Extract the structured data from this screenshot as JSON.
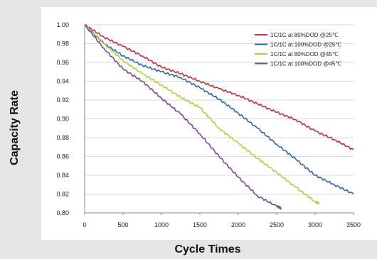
{
  "chart_data": {
    "type": "line",
    "xlabel": "Cycle Times",
    "ylabel": "Capacity Rate",
    "xlim": [
      0,
      3500
    ],
    "ylim": [
      0.8,
      1.0
    ],
    "x_ticks": [
      "0",
      "500",
      "1000",
      "1500",
      "2000",
      "2500",
      "3000",
      "3500"
    ],
    "y_ticks": [
      "1.00",
      "0.98",
      "0.96",
      "0.94",
      "0.92",
      "0.90",
      "0.88",
      "0.86",
      "0.84",
      "0.82",
      "0.80"
    ],
    "grid": true,
    "legend_position": "top-right",
    "series": [
      {
        "name": "1C/1C at 80%DOD @25℃",
        "color": "#c8323c",
        "x": [
          0,
          250,
          500,
          750,
          1000,
          1250,
          1500,
          1750,
          2000,
          2250,
          2500,
          2750,
          3000,
          3250,
          3500
        ],
        "y": [
          1.0,
          0.987,
          0.977,
          0.967,
          0.955,
          0.948,
          0.94,
          0.932,
          0.925,
          0.916,
          0.907,
          0.899,
          0.887,
          0.878,
          0.867
        ]
      },
      {
        "name": "1C/1C at 100%DOD @25℃",
        "color": "#2a6aab",
        "x": [
          0,
          250,
          500,
          750,
          1000,
          1250,
          1500,
          1750,
          2000,
          2250,
          2500,
          2750,
          3000,
          3250,
          3500
        ],
        "y": [
          1.0,
          0.98,
          0.967,
          0.957,
          0.95,
          0.944,
          0.933,
          0.921,
          0.906,
          0.89,
          0.873,
          0.857,
          0.84,
          0.83,
          0.82
        ]
      },
      {
        "name": "1C/1C at 80%DOD @45℃",
        "color": "#b5cf3a",
        "x": [
          0,
          250,
          500,
          750,
          1000,
          1250,
          1500,
          1750,
          2000,
          2250,
          2500,
          2750,
          3000,
          3050
        ],
        "y": [
          1.0,
          0.98,
          0.962,
          0.948,
          0.936,
          0.923,
          0.912,
          0.89,
          0.874,
          0.858,
          0.843,
          0.827,
          0.812,
          0.81
        ]
      },
      {
        "name": "1C/1C at 100%DOD @45℃",
        "color": "#7a4a96",
        "x": [
          0,
          250,
          500,
          750,
          1000,
          1250,
          1500,
          1750,
          2000,
          2250,
          2500,
          2560
        ],
        "y": [
          1.0,
          0.975,
          0.953,
          0.94,
          0.922,
          0.905,
          0.884,
          0.86,
          0.838,
          0.818,
          0.807,
          0.805
        ]
      }
    ]
  }
}
